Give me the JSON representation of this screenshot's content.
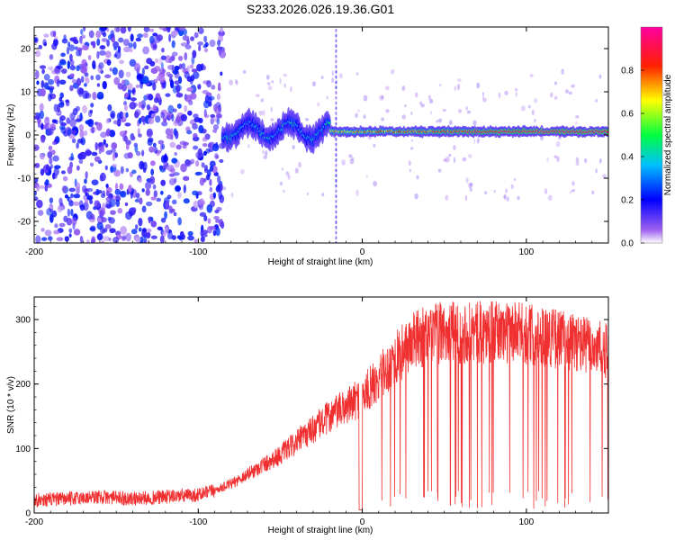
{
  "title": "S233.2026.026.19.36.G01",
  "colors": {
    "snr_line": "#f03030",
    "frame": "#000000"
  },
  "chart_data": [
    {
      "type": "heatmap",
      "title": "S233.2026.026.19.36.G01",
      "xlabel": "Height of straight line (km)",
      "ylabel": "Frequency (Hz)",
      "xlim": [
        -200,
        150
      ],
      "ylim": [
        -25,
        25
      ],
      "xticks": [
        -200,
        -100,
        0,
        100
      ],
      "yticks": [
        -20,
        -10,
        0,
        10,
        20
      ],
      "colorbar": {
        "label": "Normalized spectral amplitude",
        "range": [
          0,
          1
        ],
        "ticks": [
          "0.0",
          "0.2",
          "0.4",
          "0.6",
          "0.8"
        ],
        "colormap": [
          "#ffffff",
          "#8a2be2",
          "#0000ff",
          "#00ffff",
          "#00ff00",
          "#ffff00",
          "#ff0000",
          "#ff00ff"
        ]
      },
      "segments": [
        {
          "description": "noise",
          "x_range": [
            -200,
            -85
          ],
          "frequency_spread": [
            -25,
            25
          ]
        },
        {
          "description": "signal onset",
          "x_range": [
            -85,
            -20
          ],
          "center_frequency": 2,
          "amplitude_peak": 0.45
        },
        {
          "description": "stable signal",
          "x_range": [
            -20,
            150
          ],
          "center_frequency": 0.8,
          "amplitude_peak": 0.95
        }
      ],
      "spike_x": -16
    },
    {
      "type": "line",
      "xlabel": "Height of straight line (km)",
      "ylabel": "SNR (10 * v/v)",
      "xlim": [
        -200,
        150
      ],
      "ylim": [
        0,
        335
      ],
      "xticks": [
        -200,
        -100,
        0,
        100
      ],
      "yticks": [
        0,
        100,
        200,
        300
      ],
      "series": [
        {
          "name": "SNR",
          "x": [
            -200,
            -180,
            -160,
            -140,
            -120,
            -100,
            -90,
            -80,
            -70,
            -60,
            -50,
            -40,
            -30,
            -20,
            -10,
            0,
            10,
            20,
            30,
            40,
            50,
            60,
            70,
            80,
            90,
            100,
            110,
            120,
            130,
            140,
            150
          ],
          "values": [
            20,
            22,
            25,
            22,
            25,
            28,
            35,
            45,
            60,
            75,
            90,
            110,
            130,
            150,
            165,
            180,
            210,
            240,
            265,
            275,
            280,
            280,
            280,
            280,
            280,
            278,
            275,
            270,
            265,
            258,
            250
          ]
        }
      ]
    }
  ]
}
